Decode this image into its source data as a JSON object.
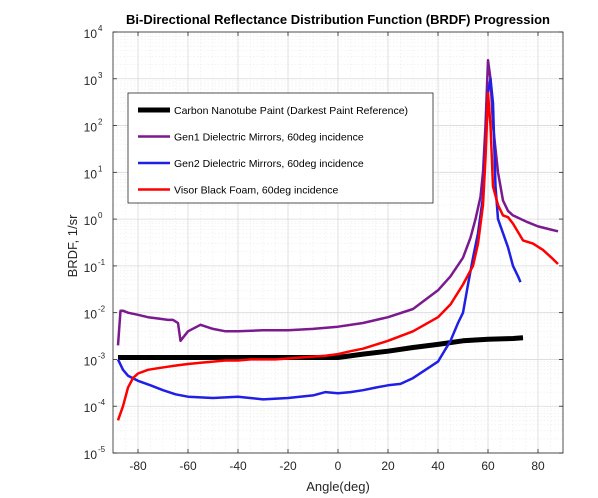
{
  "chart_data": {
    "type": "line",
    "title": "Bi-Directional Reflectance Distribution Function (BRDF) Progression",
    "xlabel": "Angle(deg)",
    "ylabel": "BRDF, 1/sr",
    "xlim": [
      -90,
      90
    ],
    "ylim": [
      1e-05,
      10000
    ],
    "yscale": "log",
    "xticks": [
      -80,
      -60,
      -40,
      -20,
      0,
      20,
      40,
      60,
      80
    ],
    "yticks_base": "10",
    "yticks_exponents": [
      "-5",
      "-4",
      "-3",
      "-2",
      "-1",
      "0",
      "1",
      "2",
      "3",
      "4"
    ],
    "grid": true,
    "legend_position": "upper-left",
    "series": [
      {
        "name": "Carbon Nanotube Paint (Darkest Paint Reference)",
        "color": "#000000",
        "width": 5,
        "x": [
          -88,
          -60,
          -40,
          -20,
          0,
          10,
          20,
          30,
          40,
          50,
          60,
          70,
          74
        ],
        "y": [
          0.0011,
          0.0011,
          0.0011,
          0.0011,
          0.0011,
          0.0013,
          0.0015,
          0.0018,
          0.0021,
          0.0025,
          0.0027,
          0.0028,
          0.0029
        ]
      },
      {
        "name": "Gen1 Dielectric Mirrors, 60deg incidence",
        "color": "#7a1a8e",
        "width": 2.5,
        "x": [
          -88,
          -87,
          -86,
          -84,
          -80,
          -76,
          -72,
          -68,
          -66,
          -64,
          -63,
          -60,
          -55,
          -50,
          -45,
          -40,
          -30,
          -20,
          -10,
          0,
          10,
          20,
          30,
          40,
          45,
          50,
          53,
          55,
          57,
          58,
          59,
          60,
          61,
          62,
          64,
          66,
          68,
          70,
          75,
          80,
          85,
          88
        ],
        "y": [
          0.002,
          0.011,
          0.011,
          0.01,
          0.009,
          0.008,
          0.0075,
          0.007,
          0.007,
          0.006,
          0.0025,
          0.004,
          0.0055,
          0.0045,
          0.004,
          0.004,
          0.0042,
          0.0042,
          0.0045,
          0.005,
          0.006,
          0.008,
          0.012,
          0.03,
          0.06,
          0.15,
          0.4,
          1.0,
          3,
          10,
          100,
          2500,
          1000,
          100,
          10,
          2.5,
          1.5,
          1.2,
          0.9,
          0.7,
          0.6,
          0.55
        ]
      },
      {
        "name": "Gen2 Dielectric Mirrors, 60deg incidence",
        "color": "#1f1fe6",
        "width": 2.5,
        "x": [
          -88,
          -86,
          -84,
          -80,
          -75,
          -70,
          -65,
          -60,
          -50,
          -40,
          -30,
          -20,
          -10,
          -5,
          0,
          5,
          10,
          15,
          20,
          25,
          30,
          35,
          40,
          45,
          48,
          50,
          52,
          54,
          56,
          58,
          59,
          60,
          61,
          62,
          63,
          64,
          66,
          68,
          70,
          72,
          73
        ],
        "y": [
          0.001,
          0.0006,
          0.00045,
          0.00035,
          0.00028,
          0.00022,
          0.00018,
          0.00016,
          0.00015,
          0.00016,
          0.00014,
          0.00015,
          0.00017,
          0.0002,
          0.00019,
          0.0002,
          0.00022,
          0.00025,
          0.00028,
          0.0003,
          0.0004,
          0.0006,
          0.0009,
          0.0025,
          0.006,
          0.01,
          0.04,
          0.15,
          0.5,
          3,
          30,
          500,
          1000,
          300,
          5,
          1.0,
          0.5,
          0.25,
          0.1,
          0.06,
          0.045
        ]
      },
      {
        "name": "Visor Black Foam, 60deg incidence",
        "color": "#ff0000",
        "width": 2.5,
        "x": [
          -88,
          -86,
          -84,
          -82,
          -80,
          -76,
          -72,
          -68,
          -64,
          -60,
          -55,
          -50,
          -45,
          -40,
          -35,
          -30,
          -25,
          -20,
          -15,
          -10,
          -5,
          0,
          5,
          10,
          20,
          30,
          40,
          45,
          50,
          54,
          56,
          58,
          59,
          60,
          61,
          62,
          64,
          66,
          68,
          70,
          74,
          78,
          82,
          86,
          88
        ],
        "y": [
          5e-05,
          0.0001,
          0.00025,
          0.0004,
          0.0005,
          0.0006,
          0.00065,
          0.0007,
          0.00075,
          0.0008,
          0.00085,
          0.0009,
          0.00095,
          0.00095,
          0.001,
          0.001,
          0.001,
          0.00105,
          0.0011,
          0.00115,
          0.0012,
          0.0013,
          0.0015,
          0.0017,
          0.0025,
          0.004,
          0.008,
          0.015,
          0.04,
          0.1,
          0.3,
          2,
          20,
          500,
          100,
          5,
          2,
          1.2,
          1.1,
          0.8,
          0.35,
          0.3,
          0.22,
          0.14,
          0.11
        ]
      }
    ]
  }
}
